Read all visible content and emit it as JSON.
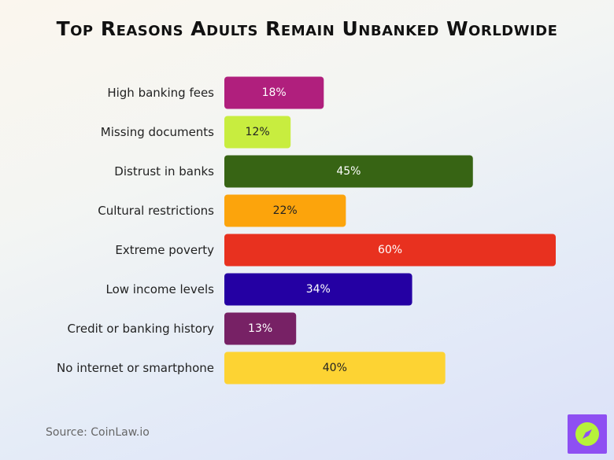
{
  "title": "Top Reasons Adults Remain Unbanked Worldwide",
  "source": "Source: CoinLaw.io",
  "logo": {
    "icon": "compass-icon",
    "color": "#8e4ff2",
    "accent": "#b7f23a"
  },
  "chart_data": {
    "type": "bar",
    "orientation": "horizontal",
    "title": "Top Reasons Adults Remain Unbanked Worldwide",
    "categories": [
      "High banking fees",
      "Missing documents",
      "Distrust in banks",
      "Cultural restrictions",
      "Extreme poverty",
      "Low income levels",
      "Credit or banking history",
      "No internet or smartphone"
    ],
    "values": [
      18,
      12,
      45,
      22,
      60,
      34,
      13,
      40
    ],
    "labels": [
      "18%",
      "12%",
      "45%",
      "22%",
      "60%",
      "34%",
      "13%",
      "40%"
    ],
    "colors": [
      "#b01f7d",
      "#c8ed3f",
      "#376414",
      "#fca40c",
      "#e8311f",
      "#2400a3",
      "#772165",
      "#fdd333"
    ],
    "label_colors": [
      "#ffffff",
      "#222222",
      "#ffffff",
      "#222222",
      "#ffffff",
      "#ffffff",
      "#ffffff",
      "#222222"
    ],
    "unit": "%",
    "xlim": [
      0,
      60
    ],
    "grid": false,
    "legend": false
  }
}
